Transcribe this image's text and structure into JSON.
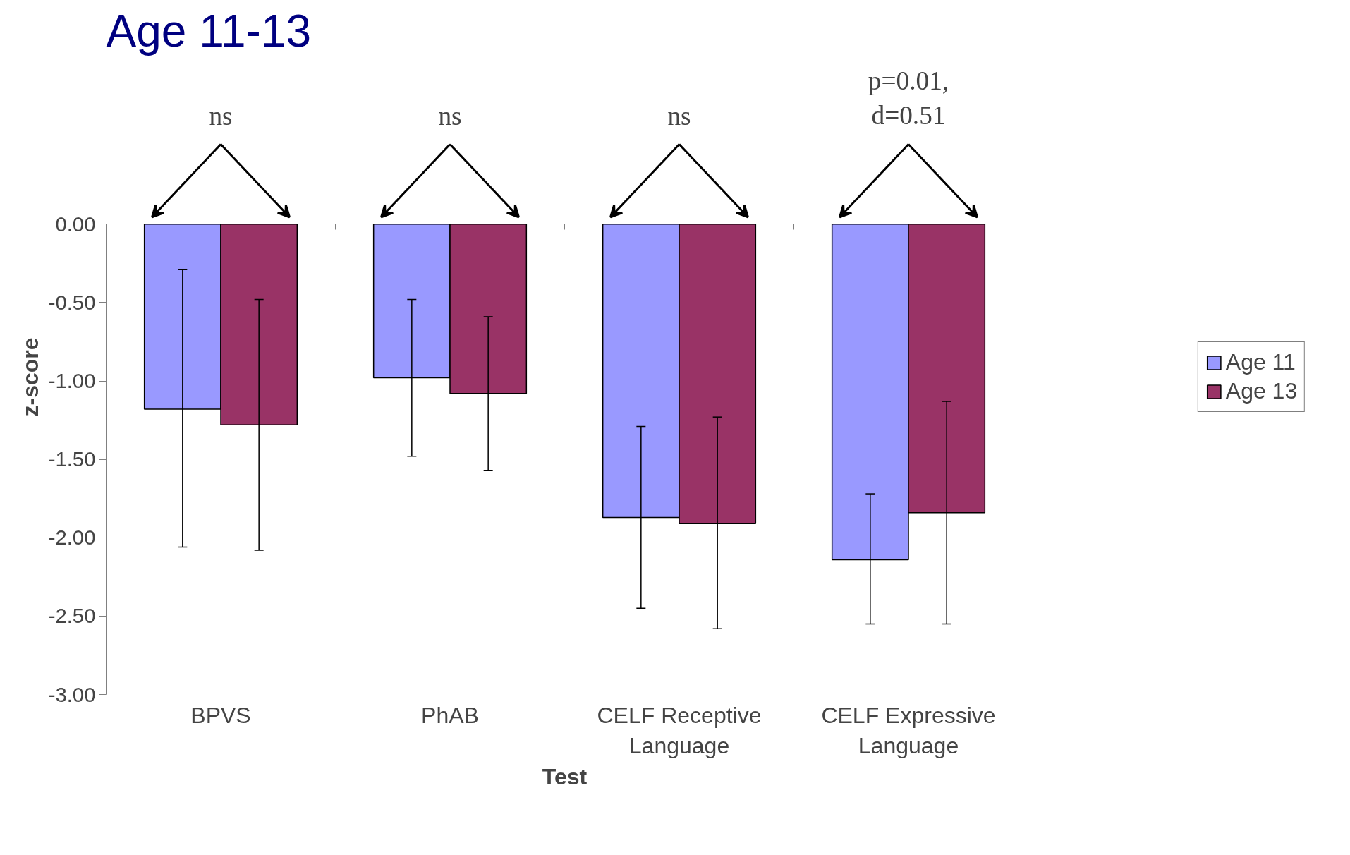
{
  "chart_data": {
    "type": "bar",
    "title": "Age 11-13",
    "xlabel": "Test",
    "ylabel": "z-score",
    "categories": [
      "BPVS",
      "PhAB",
      "CELF Receptive\nLanguage",
      "CELF Expressive\nLanguage"
    ],
    "series": [
      {
        "name": "Age 11",
        "color": "#9999ff",
        "values": [
          -1.18,
          -0.98,
          -1.87,
          -2.14
        ],
        "errors": [
          [
            -2.06,
            -0.29
          ],
          [
            -1.48,
            -0.48
          ],
          [
            -2.45,
            -1.29
          ],
          [
            -2.55,
            -1.72
          ]
        ]
      },
      {
        "name": "Age 13",
        "color": "#993366",
        "values": [
          -1.28,
          -1.08,
          -1.91,
          -1.84
        ],
        "errors": [
          [
            -2.08,
            -0.48
          ],
          [
            -1.57,
            -0.59
          ],
          [
            -2.58,
            -1.23
          ],
          [
            -2.55,
            -1.13
          ]
        ]
      }
    ],
    "annotations": [
      "ns",
      "ns",
      "ns",
      "p=0.01,\nd=0.51"
    ],
    "ylim": [
      -3,
      0
    ],
    "yticks": [
      {
        "value": 0,
        "label": "0.00"
      },
      {
        "value": -0.5,
        "label": "-0.50"
      },
      {
        "value": -1,
        "label": "-1.00"
      },
      {
        "value": -1.5,
        "label": "-1.50"
      },
      {
        "value": -2,
        "label": "-2.00"
      },
      {
        "value": -2.5,
        "label": "-2.50"
      },
      {
        "value": -3,
        "label": "-3.00"
      }
    ],
    "legend": "right"
  }
}
